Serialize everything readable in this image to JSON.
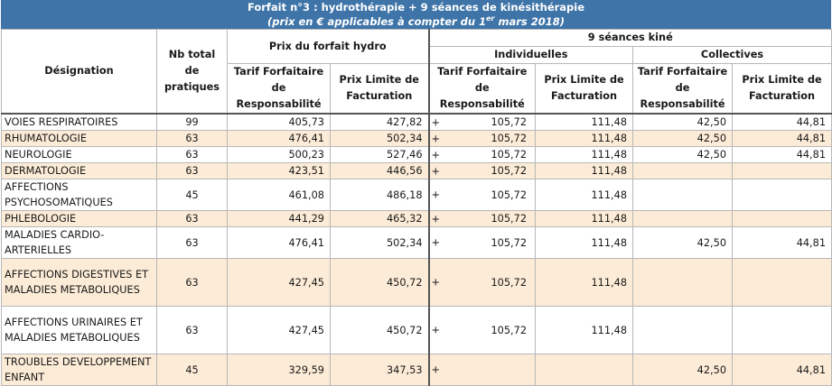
{
  "title": {
    "line1": "Forfait n°3 : hydrothérapie + 9 séances de kinésithérapie",
    "line2": "(prix en € applicables à compter du 1er mars 2018)"
  },
  "headers": {
    "designation": "Désignation",
    "nb_total": "Nb total de pratiques",
    "hydro_group": "Prix du forfait hydro",
    "kine_group": "9 séances kiné",
    "individuelles": "Individuelles",
    "collectives": "Collectives",
    "tarif": "Tarif Forfaitaire de Responsabilité",
    "prix_limite": "Prix Limite de Facturation"
  },
  "plus_symbol": "+",
  "rows": [
    {
      "name": "VOIES RESPIRATOIRES",
      "nb": "99",
      "tfr_h": "405,73",
      "plf_h": "427,82",
      "tfr_i": "105,72",
      "plf_i": "111,48",
      "tfr_c": "42,50",
      "plf_c": "44,81"
    },
    {
      "name": "RHUMATOLOGIE",
      "nb": "63",
      "tfr_h": "476,41",
      "plf_h": "502,34",
      "tfr_i": "105,72",
      "plf_i": "111,48",
      "tfr_c": "42,50",
      "plf_c": "44,81"
    },
    {
      "name": "NEUROLOGIE",
      "nb": "63",
      "tfr_h": "500,23",
      "plf_h": "527,46",
      "tfr_i": "105,72",
      "plf_i": "111,48",
      "tfr_c": "42,50",
      "plf_c": "44,81"
    },
    {
      "name": "DERMATOLOGIE",
      "nb": "63",
      "tfr_h": "423,51",
      "plf_h": "446,56",
      "tfr_i": "105,72",
      "plf_i": "111,48",
      "tfr_c": "",
      "plf_c": ""
    },
    {
      "name": "AFFECTIONS PSYCHOSOMATIQUES",
      "nb": "45",
      "tfr_h": "461,08",
      "plf_h": "486,18",
      "tfr_i": "105,72",
      "plf_i": "111,48",
      "tfr_c": "",
      "plf_c": ""
    },
    {
      "name": "PHLEBOLOGIE",
      "nb": "63",
      "tfr_h": "441,29",
      "plf_h": "465,32",
      "tfr_i": "105,72",
      "plf_i": "111,48",
      "tfr_c": "",
      "plf_c": ""
    },
    {
      "name": "MALADIES CARDIO-ARTERIELLES",
      "nb": "63",
      "tfr_h": "476,41",
      "plf_h": "502,34",
      "tfr_i": "105,72",
      "plf_i": "111,48",
      "tfr_c": "42,50",
      "plf_c": "44,81"
    },
    {
      "name": "AFFECTIONS DIGESTIVES ET MALADIES METABOLIQUES",
      "nb": "63",
      "tfr_h": "427,45",
      "plf_h": "450,72",
      "tfr_i": "105,72",
      "plf_i": "111,48",
      "tfr_c": "",
      "plf_c": ""
    },
    {
      "name": "AFFECTIONS URINAIRES ET MALADIES METABOLIQUES",
      "nb": "63",
      "tfr_h": "427,45",
      "plf_h": "450,72",
      "tfr_i": "105,72",
      "plf_i": "111,48",
      "tfr_c": "",
      "plf_c": ""
    },
    {
      "name": "TROUBLES DEVELOPPEMENT ENFANT",
      "nb": "45",
      "tfr_h": "329,59",
      "plf_h": "347,53",
      "tfr_i": "",
      "plf_i": "",
      "tfr_c": "42,50",
      "plf_c": "44,81"
    }
  ],
  "colors": {
    "title_bg": "#3e74a8",
    "alt_row_bg": "#fcebd6"
  }
}
